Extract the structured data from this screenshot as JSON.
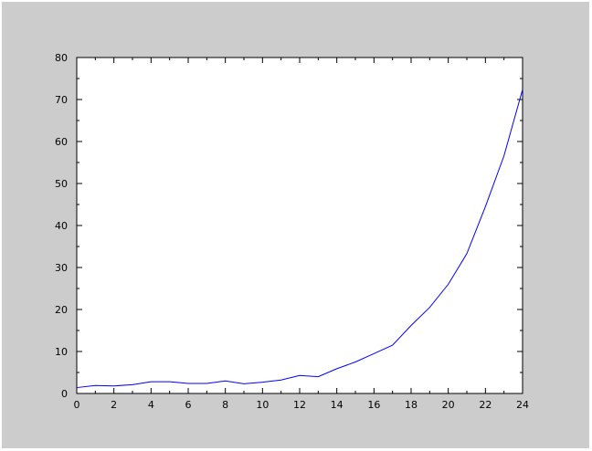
{
  "chart_data": {
    "type": "line",
    "title": "",
    "xlabel": "",
    "ylabel": "",
    "xlim": [
      0,
      24
    ],
    "ylim": [
      0,
      80
    ],
    "xticks": [
      0,
      2,
      4,
      6,
      8,
      10,
      12,
      14,
      16,
      18,
      20,
      22,
      24
    ],
    "yticks": [
      0,
      10,
      20,
      30,
      40,
      50,
      60,
      70,
      80
    ],
    "grid": false,
    "legend": "none",
    "series": [
      {
        "color": "#0000ff",
        "x": [
          0,
          1,
          2,
          3,
          4,
          5,
          6,
          7,
          8,
          9,
          10,
          11,
          12,
          13,
          14,
          15,
          16,
          17,
          18,
          19,
          20,
          21,
          22,
          23,
          24
        ],
        "y": [
          1.4,
          1.9,
          1.8,
          2.1,
          2.8,
          2.8,
          2.4,
          2.4,
          3.0,
          2.3,
          2.7,
          3.2,
          4.3,
          4.0,
          5.9,
          7.5,
          9.5,
          11.5,
          16.2,
          20.5,
          26.0,
          33.3,
          44.5,
          56.6,
          72.4
        ]
      }
    ]
  }
}
